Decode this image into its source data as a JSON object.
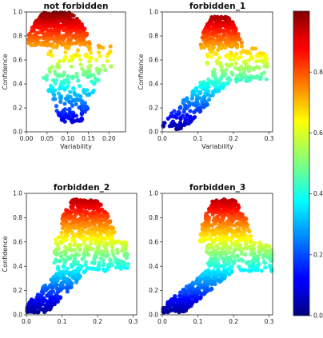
{
  "chart_data": [
    {
      "type": "scatter",
      "title": "not forbidden",
      "xlabel": "Variability",
      "ylabel": "Confidence",
      "xlim": [
        0.0,
        0.24
      ],
      "ylim": [
        0.0,
        1.0
      ],
      "xticks": [
        0.0,
        0.05,
        0.1,
        0.15,
        0.2
      ],
      "xtick_labels": [
        "0.00",
        "0.05",
        "0.10",
        "0.15",
        "0.20"
      ],
      "yticks": [
        0.0,
        0.2,
        0.4,
        0.6,
        0.8,
        1.0
      ],
      "ytick_labels": [
        "0.0",
        "0.2",
        "0.4",
        "0.6",
        "0.8",
        "1.0"
      ],
      "color_value": "Confidence",
      "clusters": [
        {
          "n": 420,
          "x": [
            0.01,
            0.18
          ],
          "y": [
            0.72,
            1.0
          ],
          "shape": "dome",
          "center_x": 0.07
        },
        {
          "n": 70,
          "x": [
            0.05,
            0.21
          ],
          "y": [
            0.5,
            0.72
          ]
        },
        {
          "n": 170,
          "x": [
            0.06,
            0.16
          ],
          "y": [
            0.08,
            0.5
          ],
          "shape": "funnel"
        }
      ]
    },
    {
      "type": "scatter",
      "title": "forbidden_1",
      "xlabel": "Variability",
      "ylabel": "Confidence",
      "xlim": [
        0.0,
        0.31
      ],
      "ylim": [
        0.0,
        1.0
      ],
      "xticks": [
        0.0,
        0.1,
        0.2,
        0.3
      ],
      "xtick_labels": [
        "0.0",
        "0.1",
        "0.2",
        "0.3"
      ],
      "yticks": [
        0.0,
        0.2,
        0.4,
        0.6,
        0.8,
        1.0
      ],
      "ytick_labels": [
        "0.0",
        "0.2",
        "0.4",
        "0.6",
        "0.8",
        "1.0"
      ],
      "color_value": "Confidence",
      "clusters": [
        {
          "n": 280,
          "x": [
            0.11,
            0.24
          ],
          "y": [
            0.7,
            0.96
          ],
          "shape": "dome",
          "center_x": 0.16
        },
        {
          "n": 150,
          "x": [
            0.12,
            0.29
          ],
          "y": [
            0.42,
            0.7
          ],
          "shape": "band"
        },
        {
          "n": 170,
          "x": [
            0.0,
            0.18
          ],
          "y": [
            0.02,
            0.42
          ],
          "shape": "diagonal"
        }
      ]
    },
    {
      "type": "scatter",
      "title": "forbidden_2",
      "xlabel": "",
      "ylabel": "Confidence",
      "xlim": [
        0.0,
        0.31
      ],
      "ylim": [
        0.0,
        1.0
      ],
      "xticks": [
        0.0,
        0.1,
        0.2,
        0.3
      ],
      "xtick_labels": [
        "0.0",
        "0.1",
        "0.2",
        "0.3"
      ],
      "yticks": [
        0.0,
        0.2,
        0.4,
        0.6,
        0.8,
        1.0
      ],
      "ytick_labels": [
        "0.0",
        "0.2",
        "0.4",
        "0.6",
        "0.8",
        "1.0"
      ],
      "color_value": "Confidence",
      "clusters": [
        {
          "n": 360,
          "x": [
            0.08,
            0.26
          ],
          "y": [
            0.62,
            0.95
          ],
          "shape": "dome",
          "center_x": 0.16
        },
        {
          "n": 220,
          "x": [
            0.07,
            0.28
          ],
          "y": [
            0.36,
            0.62
          ],
          "shape": "band"
        },
        {
          "n": 260,
          "x": [
            0.0,
            0.16
          ],
          "y": [
            0.02,
            0.36
          ],
          "shape": "diagonal"
        }
      ]
    },
    {
      "type": "scatter",
      "title": "forbidden_3",
      "xlabel": "",
      "ylabel": "",
      "xlim": [
        0.0,
        0.31
      ],
      "ylim": [
        0.0,
        1.0
      ],
      "xticks": [
        0.0,
        0.1,
        0.2,
        0.3
      ],
      "xtick_labels": [
        "0.0",
        "0.1",
        "0.2",
        "0.3"
      ],
      "yticks": [
        0.0,
        0.2,
        0.4,
        0.6,
        0.8,
        1.0
      ],
      "ytick_labels": [
        "0.0",
        "0.2",
        "0.4",
        "0.6",
        "0.8",
        "1.0"
      ],
      "color_value": "Confidence",
      "clusters": [
        {
          "n": 360,
          "x": [
            0.12,
            0.28
          ],
          "y": [
            0.6,
            0.95
          ],
          "shape": "dome",
          "center_x": 0.17
        },
        {
          "n": 220,
          "x": [
            0.12,
            0.31
          ],
          "y": [
            0.36,
            0.6
          ],
          "shape": "band"
        },
        {
          "n": 300,
          "x": [
            0.0,
            0.19
          ],
          "y": [
            0.02,
            0.36
          ],
          "shape": "diagonal"
        }
      ]
    }
  ],
  "colorbar": {
    "colormap": "jet",
    "range": [
      0.0,
      1.0
    ],
    "ticks": [
      0.0,
      0.2,
      0.4,
      0.6,
      0.8
    ],
    "tick_labels": [
      "0.0",
      "0.2",
      "0.4",
      "0.6",
      "0.8"
    ]
  }
}
